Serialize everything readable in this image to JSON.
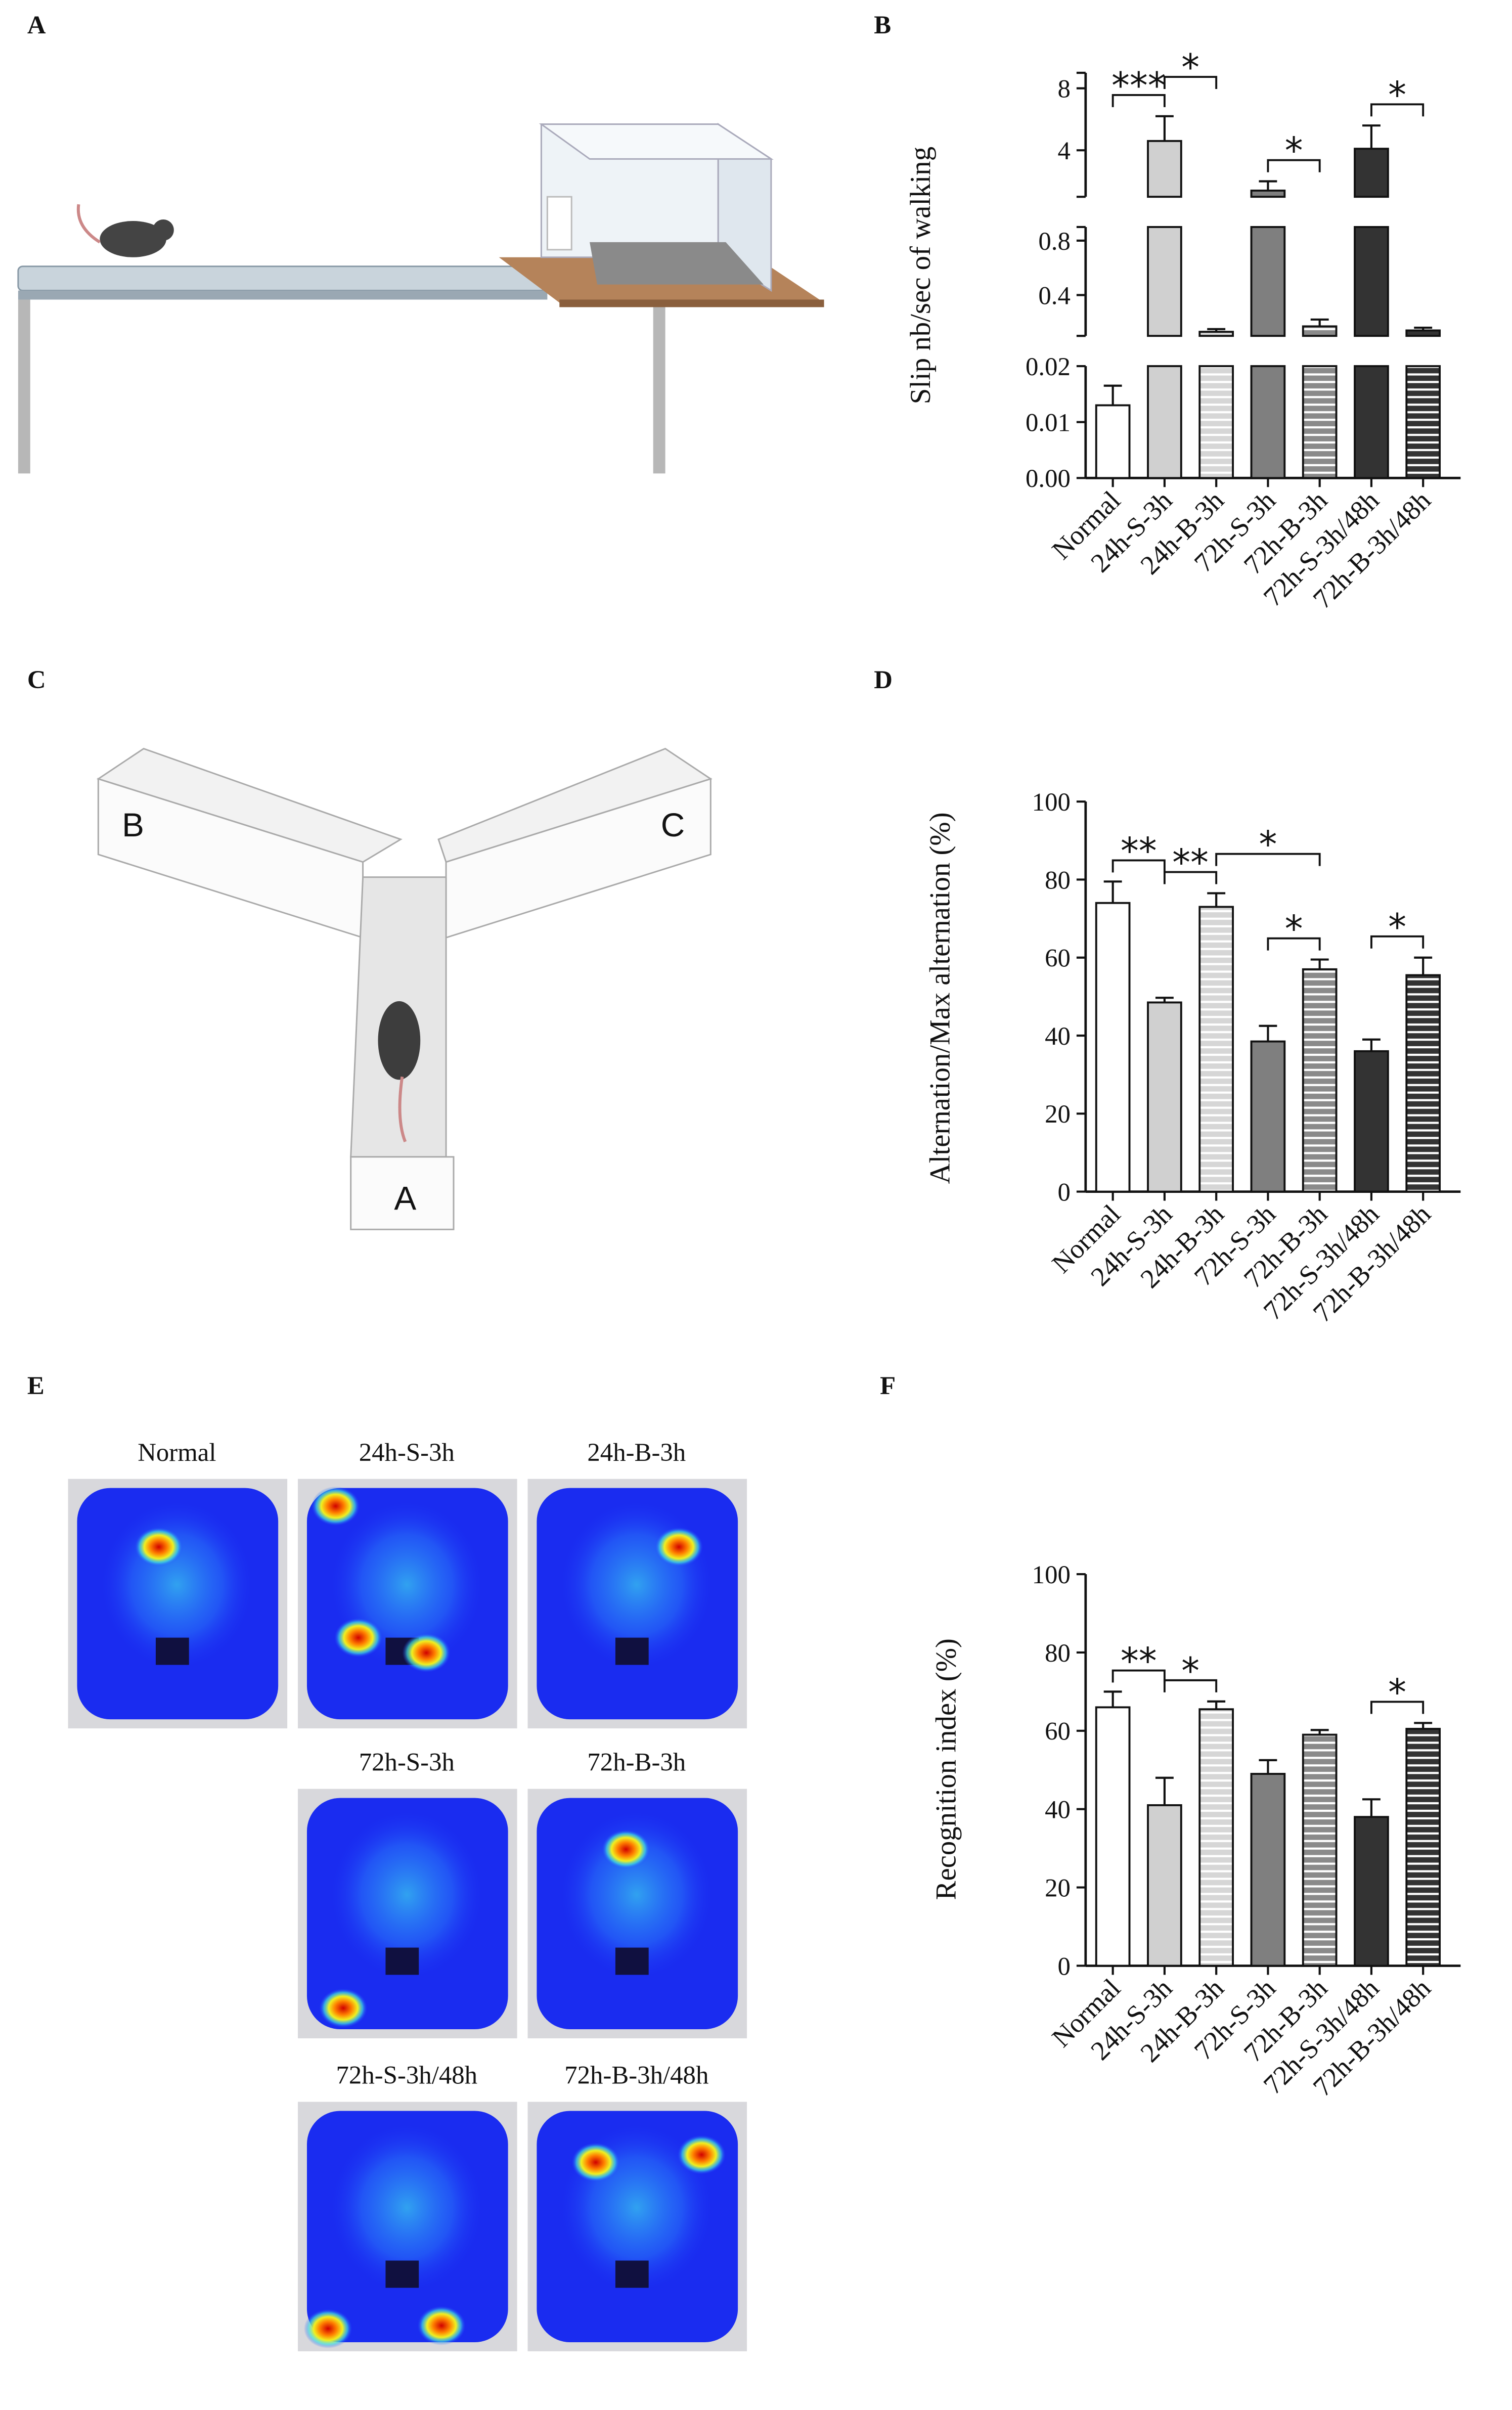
{
  "panel_labels": [
    "A",
    "B",
    "C",
    "D",
    "E",
    "F"
  ],
  "maze_arms": [
    "B",
    "C",
    "A"
  ],
  "heatmaps": [
    "Normal",
    "24h-S-3h",
    "24h-B-3h",
    "72h-S-3h",
    "72h-B-3h",
    "72h-S-3h/48h",
    "72h-B-3h/48h"
  ],
  "chart_data": [
    {
      "type": "bar",
      "ylabel": "Slip nb/sec of walking",
      "categories": [
        "Normal",
        "24h-S-3h",
        "24h-B-3h",
        "72h-S-3h",
        "72h-B-3h",
        "72h-S-3h/48h",
        "72h-B-3h/48h"
      ],
      "values": [
        0.013,
        4.6,
        0.13,
        1.4,
        0.17,
        4.1,
        0.14
      ],
      "errors": [
        0.0035,
        1.6,
        0.02,
        0.6,
        0.05,
        1.5,
        0.02
      ],
      "colors": [
        "#ffffff",
        "#d0d0d0",
        "#d6d6d6",
        "#7f7f7f",
        "#8a8a8a",
        "#333333",
        "#333333"
      ],
      "hatch": [
        false,
        false,
        true,
        false,
        true,
        false,
        true
      ],
      "y_segments": [
        {
          "ylim": [
            0,
            0.02
          ],
          "yticks": [
            {
              "value": 0,
              "label": "0.00"
            },
            0.01,
            0.02
          ]
        },
        {
          "ylim": [
            0.1,
            0.9
          ],
          "yticks": [
            0.4,
            0.8
          ]
        },
        {
          "ylim": [
            1,
            9
          ],
          "yticks": [
            4,
            8
          ]
        }
      ],
      "annotations": [
        {
          "text": "***",
          "from": 0,
          "to": 1
        },
        {
          "text": "*",
          "from": 1,
          "to": 2
        },
        {
          "text": "*",
          "from": 3,
          "to": 4
        },
        {
          "text": "*",
          "from": 5,
          "to": 6
        }
      ]
    },
    {
      "type": "bar",
      "ylabel": "Alternation/Max alternation (%)",
      "categories": [
        "Normal",
        "24h-S-3h",
        "24h-B-3h",
        "72h-S-3h",
        "72h-B-3h",
        "72h-S-3h/48h",
        "72h-B-3h/48h"
      ],
      "values": [
        74,
        48.5,
        73,
        38.5,
        57,
        36,
        55.5
      ],
      "errors": [
        5.5,
        1.2,
        3.5,
        4,
        2.5,
        3,
        4.5
      ],
      "colors": [
        "#ffffff",
        "#d0d0d0",
        "#d6d6d6",
        "#7f7f7f",
        "#8a8a8a",
        "#333333",
        "#333333"
      ],
      "hatch": [
        false,
        false,
        true,
        false,
        true,
        false,
        true
      ],
      "ylim": [
        0,
        100
      ],
      "yticks": [
        0,
        20,
        40,
        60,
        80,
        100
      ],
      "annotations": [
        {
          "text": "**",
          "from": 0,
          "to": 1
        },
        {
          "text": "**",
          "from": 1,
          "to": 2
        },
        {
          "text": "*",
          "from": 2,
          "to": 4
        },
        {
          "text": "*",
          "from": 3,
          "to": 4
        },
        {
          "text": "*",
          "from": 5,
          "to": 6
        }
      ]
    },
    {
      "type": "bar",
      "ylabel": "Recognition index (%)",
      "categories": [
        "Normal",
        "24h-S-3h",
        "24h-B-3h",
        "72h-S-3h",
        "72h-B-3h",
        "72h-S-3h/48h",
        "72h-B-3h/48h"
      ],
      "values": [
        66,
        41,
        65.5,
        49,
        59,
        38,
        60.5
      ],
      "errors": [
        4,
        7,
        2,
        3.5,
        1.2,
        4.5,
        1.5
      ],
      "colors": [
        "#ffffff",
        "#d0d0d0",
        "#d6d6d6",
        "#7f7f7f",
        "#8a8a8a",
        "#333333",
        "#333333"
      ],
      "hatch": [
        false,
        false,
        true,
        false,
        true,
        false,
        true
      ],
      "ylim": [
        0,
        100
      ],
      "yticks": [
        0,
        20,
        40,
        60,
        80,
        100
      ],
      "annotations": [
        {
          "text": "**",
          "from": 0,
          "to": 1
        },
        {
          "text": "*",
          "from": 1,
          "to": 2
        },
        {
          "text": "*",
          "from": 5,
          "to": 6
        }
      ]
    }
  ]
}
